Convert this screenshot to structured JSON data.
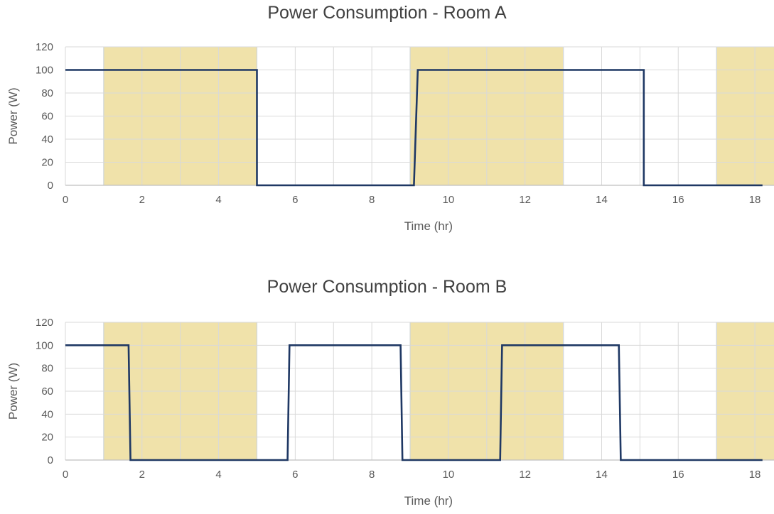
{
  "colors": {
    "shade": "#F0E2AA",
    "shade_edge": "#B5CFD6",
    "line": "#1F3864",
    "grid": "#D9D9D9",
    "axis": "#BFBFBF",
    "text": "#595959",
    "title": "#404040"
  },
  "chart_data": [
    {
      "type": "line",
      "title": "Power Consumption - Room A",
      "xlabel": "Time (hr)",
      "ylabel": "Power (W)",
      "xlim": [
        0,
        18.5
      ],
      "ylim": [
        0,
        120
      ],
      "xticks": [
        0,
        2,
        4,
        6,
        8,
        10,
        12,
        14,
        16,
        18
      ],
      "yticks": [
        0,
        20,
        40,
        60,
        80,
        100,
        120
      ],
      "grid": true,
      "shaded_intervals": [
        [
          1,
          5
        ],
        [
          9,
          13
        ],
        [
          17,
          18.5
        ]
      ],
      "series": [
        {
          "x": [
            0,
            5,
            5,
            9.1,
            9.2,
            15.1,
            15.1,
            18.2
          ],
          "y": [
            100,
            100,
            0,
            0,
            100,
            100,
            0,
            0
          ]
        }
      ]
    },
    {
      "type": "line",
      "title": "Power Consumption - Room B",
      "xlabel": "Time (hr)",
      "ylabel": "Power (W)",
      "xlim": [
        0,
        18.5
      ],
      "ylim": [
        0,
        120
      ],
      "xticks": [
        0,
        2,
        4,
        6,
        8,
        10,
        12,
        14,
        16,
        18
      ],
      "yticks": [
        0,
        20,
        40,
        60,
        80,
        100,
        120
      ],
      "grid": true,
      "shaded_intervals": [
        [
          1,
          5
        ],
        [
          9,
          13
        ],
        [
          17,
          18.5
        ]
      ],
      "series": [
        {
          "x": [
            0,
            1.65,
            1.7,
            5.8,
            5.85,
            8.75,
            8.8,
            11.35,
            11.4,
            14.45,
            14.5,
            18.2
          ],
          "y": [
            100,
            100,
            0,
            0,
            100,
            100,
            0,
            0,
            100,
            100,
            0,
            0
          ]
        }
      ]
    }
  ]
}
